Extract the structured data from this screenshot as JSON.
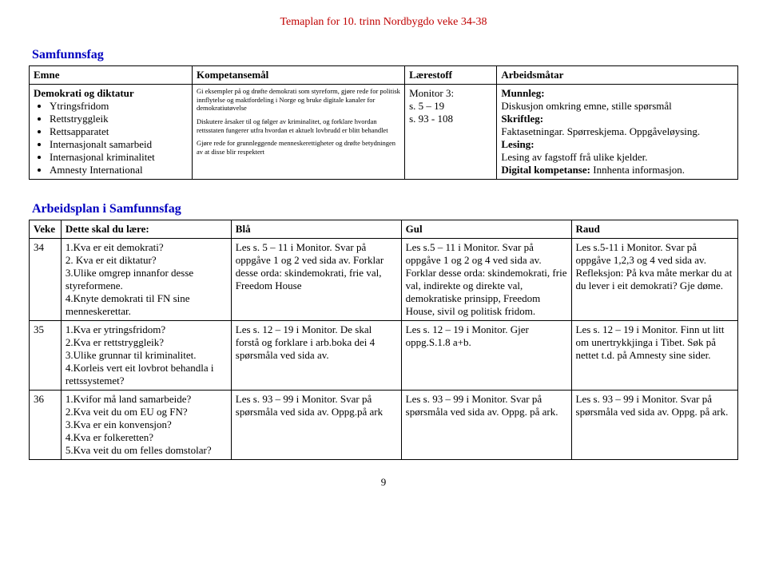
{
  "header": "Temaplan for 10. trinn Nordbygdo veke 34-38",
  "section1_title": "Samfunnsfag",
  "table1": {
    "headers": [
      "Emne",
      "Kompetansemål",
      "Lærestoff",
      "Arbeidsmåtar"
    ],
    "row": {
      "emne_title": "Demokrati og diktatur",
      "emne_items": [
        "Ytringsfridom",
        "Rettstryggleik",
        "Rettsapparatet",
        "Internasjonalt samarbeid",
        "Internasjonal kriminalitet",
        "Amnesty International"
      ],
      "komp": [
        "Gi eksempler på og drøfte demokrati som styreform, gjøre rede for politisk innflytelse og maktfordeling i Norge og bruke digitale kanaler for demokratiutøvelse",
        "Diskutere årsaker til og følger av kriminalitet, og forklare hvordan rettsstaten fungerer utfra hvordan et aktuelt lovbrudd er blitt behandlet",
        "Gjøre rede for grunnleggende menneskerettigheter og drøfte betydningen av at disse blir respektert"
      ],
      "laerestoff": [
        "Monitor 3:",
        "s. 5 – 19",
        "s. 93 - 108"
      ],
      "arbeid": {
        "h1": "Munnleg:",
        "t1": "Diskusjon omkring emne, stille spørsmål",
        "h2": "Skriftleg:",
        "t2": "Faktasetningar. Spørreskjema. Oppgåveløysing.",
        "h3": "Lesing:",
        "t3": "Lesing av fagstoff frå ulike kjelder.",
        "h4_pre": "Digital kompetanse:",
        "h4_post": " Innhenta informasjon."
      }
    }
  },
  "section2_title": "Arbeidsplan i Samfunnsfag",
  "table2": {
    "headers": [
      "Veke",
      "Dette skal du lære:",
      "Blå",
      "Gul",
      "Raud"
    ],
    "rows": [
      {
        "veke": "34",
        "laere": [
          "1.Kva er eit demokrati?",
          "2. Kva er eit diktatur?",
          "3.Ulike omgrep innanfor desse styreformene.",
          "4.Knyte demokrati til FN sine menneskerettar."
        ],
        "blaa": "Les s. 5 – 11 i Monitor. Svar på oppgåve 1 og 2 ved sida av. Forklar desse orda: skindemokrati, frie val, Freedom House",
        "gul": "Les s.5 – 11 i Monitor. Svar på oppgåve 1 og 2 og 4 ved sida av. Forklar desse orda: skindemokrati, frie val, indirekte og direkte val, demokratiske prinsipp, Freedom House, sivil og politisk fridom.",
        "raud": "Les s.5-11 i Monitor. Svar på oppgåve 1,2,3 og 4 ved sida av. Refleksjon: På kva måte merkar du at du lever i eit demokrati? Gje døme."
      },
      {
        "veke": "35",
        "laere": [
          "1.Kva er ytringsfridom?",
          "2.Kva er rettstryggleik?",
          "3.Ulike grunnar til kriminalitet.",
          "4.Korleis vert eit lovbrot behandla i rettssystemet?"
        ],
        "blaa": "Les s. 12 – 19 i Monitor. De skal forstå og forklare i arb.boka dei 4 spørsmåla ved sida av.",
        "gul": "Les s. 12 – 19 i Monitor. Gjer oppg.S.1.8 a+b.",
        "raud": "Les s. 12 – 19 i Monitor. Finn ut litt om unertrykkjinga i Tibet. Søk på nettet t.d. på Amnesty sine sider."
      },
      {
        "veke": "36",
        "laere": [
          "1.Kvifor må land samarbeide?",
          "2.Kva veit du om EU og FN?",
          "3.Kva er ein konvensjon?",
          "4.Kva er folkeretten?",
          "5.Kva veit du om felles domstolar?"
        ],
        "blaa": "Les s. 93 – 99 i Monitor. Svar på spørsmåla ved sida av. Oppg.på ark",
        "gul": "Les s. 93 – 99 i Monitor. Svar på spørsmåla ved sida av. Oppg. på ark.",
        "raud": "Les s. 93 – 99 i Monitor. Svar på spørsmåla ved sida av. Oppg. på ark."
      }
    ]
  },
  "pagenum": "9"
}
